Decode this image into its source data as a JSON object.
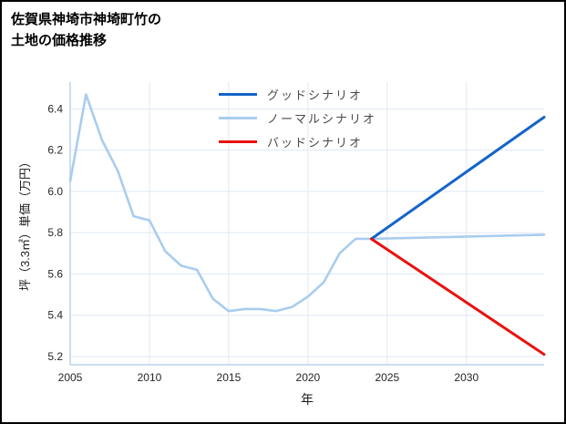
{
  "title": {
    "line1": "佐賀県神埼市神埼町竹の",
    "line2": "土地の価格推移"
  },
  "chart_data": {
    "type": "line",
    "title": "佐賀県神埼市神埼町竹の土地の価格推移",
    "xlabel": "年",
    "ylabel": "坪（3.3㎡）単価（万円）",
    "xlim": [
      2005,
      2034.9
    ],
    "ylim": [
      5.16,
      6.53
    ],
    "xticks": [
      2005,
      2010,
      2015,
      2020,
      2025,
      2030
    ],
    "yticks": [
      5.2,
      5.4,
      5.6,
      5.8,
      6.0,
      6.2,
      6.4
    ],
    "grid": true,
    "grid_color": "#dfe9f5",
    "spine_color": "#bcd2ea",
    "tick_label_color": "#262626",
    "legend_position": "upper center",
    "series": [
      {
        "id": "good-scenario",
        "name": "グッドシナリオ",
        "color": "#1464c8",
        "width": 3,
        "x": [
          2024,
          2034.9
        ],
        "y": [
          5.77,
          6.36
        ]
      },
      {
        "id": "normal-scenario",
        "name": "ノーマルシナリオ",
        "color": "#a9cdee",
        "width": 2.6,
        "x": [
          2005,
          2006,
          2007,
          2008,
          2009,
          2010,
          2011,
          2012,
          2013,
          2014,
          2015,
          2016,
          2017,
          2018,
          2019,
          2020,
          2021,
          2022,
          2023,
          2024,
          2034.9
        ],
        "y": [
          6.05,
          6.47,
          6.25,
          6.1,
          5.88,
          5.86,
          5.71,
          5.64,
          5.62,
          5.48,
          5.42,
          5.43,
          5.43,
          5.42,
          5.44,
          5.49,
          5.56,
          5.7,
          5.77,
          5.77,
          5.79
        ]
      },
      {
        "id": "bad-scenario",
        "name": "バッドシナリオ",
        "color": "#e8120e",
        "width": 3,
        "x": [
          2024,
          2034.9
        ],
        "y": [
          5.77,
          5.21
        ]
      }
    ]
  }
}
